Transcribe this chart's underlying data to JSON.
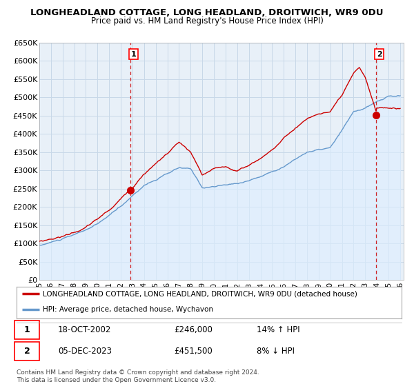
{
  "title": "LONGHEADLAND COTTAGE, LONG HEADLAND, DROITWICH, WR9 0DU",
  "subtitle": "Price paid vs. HM Land Registry's House Price Index (HPI)",
  "ylabel_ticks": [
    "£0",
    "£50K",
    "£100K",
    "£150K",
    "£200K",
    "£250K",
    "£300K",
    "£350K",
    "£400K",
    "£450K",
    "£500K",
    "£550K",
    "£600K",
    "£650K"
  ],
  "ytick_values": [
    0,
    50000,
    100000,
    150000,
    200000,
    250000,
    300000,
    350000,
    400000,
    450000,
    500000,
    550000,
    600000,
    650000
  ],
  "x_start_year": 1995,
  "x_end_year": 2026,
  "xtick_years": [
    1995,
    1996,
    1997,
    1998,
    1999,
    2000,
    2001,
    2002,
    2003,
    2004,
    2005,
    2006,
    2007,
    2008,
    2009,
    2010,
    2011,
    2012,
    2013,
    2014,
    2015,
    2016,
    2017,
    2018,
    2019,
    2020,
    2021,
    2022,
    2023,
    2024,
    2025,
    2026
  ],
  "xtick_labels": [
    "95",
    "96",
    "97",
    "98",
    "99",
    "00",
    "01",
    "02",
    "03",
    "04",
    "05",
    "06",
    "07",
    "08",
    "09",
    "10",
    "11",
    "12",
    "13",
    "14",
    "15",
    "16",
    "17",
    "18",
    "19",
    "20",
    "21",
    "22",
    "23",
    "24",
    "25",
    "26"
  ],
  "hpi_color": "#6699cc",
  "hpi_fill_color": "#ddeeff",
  "price_color": "#cc0000",
  "marker1_year": 2002.8,
  "marker1_value": 246000,
  "marker2_year": 2023.92,
  "marker2_value": 451500,
  "vline1_year": 2002.8,
  "vline2_year": 2023.92,
  "legend_property_label": "LONGHEADLAND COTTAGE, LONG HEADLAND, DROITWICH, WR9 0DU (detached house)",
  "legend_hpi_label": "HPI: Average price, detached house, Wychavon",
  "annotation1_num": "1",
  "annotation1_date": "18-OCT-2002",
  "annotation1_price": "£246,000",
  "annotation1_hpi": "14% ↑ HPI",
  "annotation2_num": "2",
  "annotation2_date": "05-DEC-2023",
  "annotation2_price": "£451,500",
  "annotation2_hpi": "8% ↓ HPI",
  "footer": "Contains HM Land Registry data © Crown copyright and database right 2024.\nThis data is licensed under the Open Government Licence v3.0.",
  "background_color": "#ffffff",
  "plot_bg_color": "#e8f0f8",
  "grid_color": "#c8d8e8"
}
